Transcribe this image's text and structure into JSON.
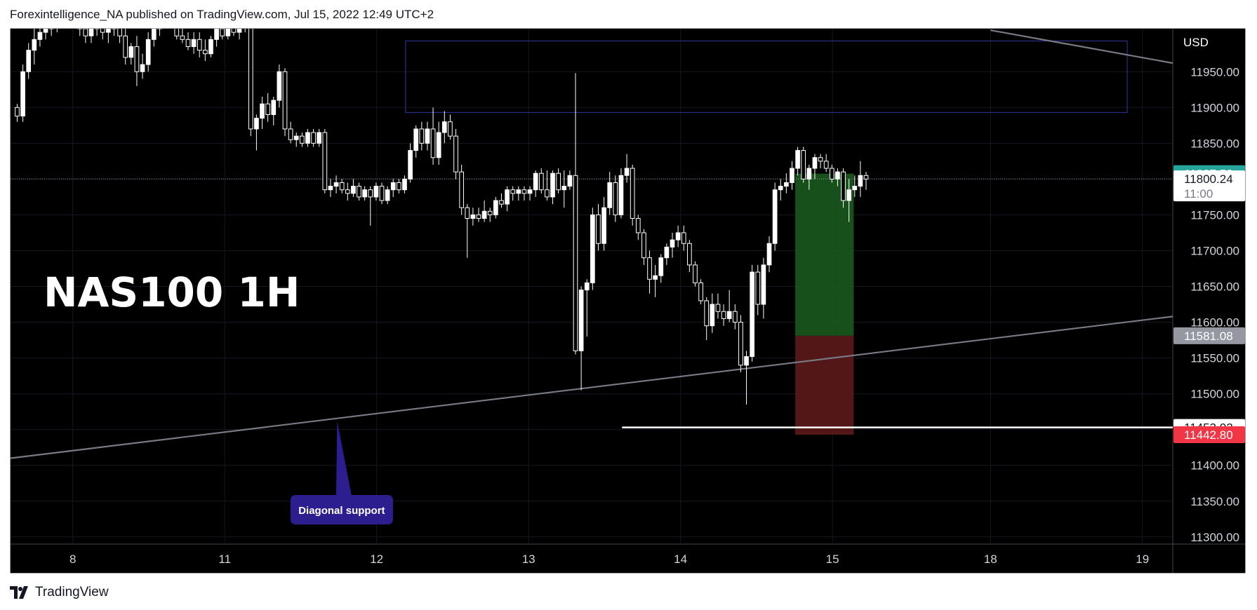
{
  "header": {
    "text": "Forexintelligence_NA published on TradingView.com, Jul 15, 2022 12:49 UTC+2"
  },
  "footer": {
    "brand": "TradingView",
    "logo_icon": "tradingview-logo-icon"
  },
  "chart_data": {
    "type": "candlestick",
    "title": "NAS100 1H",
    "currency": "USD",
    "y_ticks": [
      11300,
      11350,
      11400,
      11450,
      11500,
      11550,
      11600,
      11650,
      11700,
      11750,
      11800,
      11850,
      11900,
      11950
    ],
    "y_tick_labels": [
      "11300.00",
      "11350.00",
      "11400.00",
      "11450.00",
      "11500.00",
      "11550.00",
      "11600.00",
      "11650.00",
      "11700.00",
      "11750.00",
      "11800.00",
      "11850.00",
      "11900.00",
      "11950.00"
    ],
    "ylim": [
      11290,
      12010
    ],
    "x_tick_labels": [
      {
        "label": "8",
        "day": 0.82
      },
      {
        "label": "11",
        "day": 2.82
      },
      {
        "label": "12",
        "day": 4.82
      },
      {
        "label": "13",
        "day": 6.82
      },
      {
        "label": "14",
        "day": 8.82
      },
      {
        "label": "15",
        "day": 10.82
      },
      {
        "label": "18",
        "day": 12.9
      },
      {
        "label": "19",
        "day": 14.9
      }
    ],
    "xlim": [
      0,
      15.3
    ],
    "grid": true,
    "price_labels": [
      {
        "text": "11807.58",
        "value": 11807.58,
        "bg": "#26a69a",
        "fg": "#ffffff"
      },
      {
        "text": "11800.24",
        "value": 11800.24,
        "bg": "#ffffff",
        "fg": "#131722",
        "subtext": "11:00"
      },
      {
        "text": "11581.08",
        "value": 11581.08,
        "bg": "#9598a1",
        "fg": "#ffffff"
      },
      {
        "text": "11453.02",
        "value": 11453.02,
        "bg": "#ffffff",
        "fg": "#131722"
      },
      {
        "text": "11442.80",
        "value": 11442.8,
        "bg": "#f23645",
        "fg": "#ffffff"
      }
    ],
    "current_price": 11800.24,
    "resistance_zone": {
      "x0": 5.2,
      "x1": 14.7,
      "y_low": 11893,
      "y_high": 11993,
      "color": "#2a2e8c"
    },
    "horizontal_support": {
      "value": 11453.02,
      "x_start": 8.05
    },
    "diagonal_lines": [
      {
        "name": "diagonal-support-line",
        "x0": 0,
        "y0": 11410,
        "x1": 15.3,
        "y1": 11608
      },
      {
        "name": "upper-trend-line",
        "x0": 12.9,
        "y0": 12008,
        "x1": 15.3,
        "y1": 11962
      }
    ],
    "position": {
      "x0": 10.33,
      "x1": 11.1,
      "entry": 11581.08,
      "target": 11807.58,
      "stop": 11442.8,
      "profit_color": "#1b5e20",
      "loss_color": "#5c1a1a"
    },
    "annotation": {
      "text": "Diagonal support",
      "arrow_tip": {
        "x": 4.3,
        "y": 11462
      },
      "box_center": {
        "x": 4.36,
        "y": 11338
      },
      "bg": "#2d1e8f"
    },
    "candles": [
      [
        11900,
        11905,
        11880,
        11888
      ],
      [
        11888,
        11960,
        11880,
        11950
      ],
      [
        11950,
        11990,
        11940,
        11980
      ],
      [
        11980,
        12010,
        11960,
        11995
      ],
      [
        11995,
        12020,
        11985,
        12005
      ],
      [
        12005,
        12030,
        11995,
        12010
      ],
      [
        12010,
        12035,
        12000,
        12015
      ],
      [
        12015,
        12040,
        12005,
        12020
      ],
      [
        12020,
        12040,
        12010,
        12025
      ],
      [
        12025,
        12050,
        12015,
        12030
      ],
      [
        12030,
        12060,
        12020,
        12040
      ],
      [
        12040,
        12050,
        12000,
        12010
      ],
      [
        12010,
        12030,
        11990,
        12000
      ],
      [
        12000,
        12020,
        11990,
        12010
      ],
      [
        12010,
        12030,
        12000,
        12015
      ],
      [
        12015,
        12030,
        11995,
        12005
      ],
      [
        12005,
        12025,
        11990,
        12010
      ],
      [
        12010,
        12030,
        12000,
        12020
      ],
      [
        12020,
        12030,
        11990,
        12000
      ],
      [
        12000,
        12010,
        11960,
        11970
      ],
      [
        11970,
        11990,
        11960,
        11985
      ],
      [
        11985,
        12000,
        11930,
        11950
      ],
      [
        11950,
        11975,
        11940,
        11960
      ],
      [
        11960,
        12005,
        11950,
        11995
      ],
      [
        11995,
        12020,
        11985,
        12010
      ],
      [
        12010,
        12030,
        12000,
        12020
      ],
      [
        12020,
        12035,
        12010,
        12025
      ],
      [
        12025,
        12040,
        12010,
        12015
      ],
      [
        12015,
        12020,
        11995,
        12000
      ],
      [
        12000,
        12010,
        11990,
        11995
      ],
      [
        11995,
        12005,
        11980,
        11985
      ],
      [
        11985,
        12005,
        11975,
        11995
      ],
      [
        11995,
        12005,
        11970,
        11980
      ],
      [
        11980,
        11995,
        11965,
        11975
      ],
      [
        11975,
        12000,
        11970,
        11995
      ],
      [
        11995,
        12020,
        11985,
        12010
      ],
      [
        12010,
        12025,
        11995,
        12000
      ],
      [
        12000,
        12030,
        11995,
        12020
      ],
      [
        12020,
        12030,
        12000,
        12005
      ],
      [
        12005,
        12025,
        11995,
        12015
      ],
      [
        12015,
        12040,
        12005,
        12030
      ],
      [
        12030,
        12040,
        11860,
        11870
      ],
      [
        11870,
        11890,
        11840,
        11885
      ],
      [
        11885,
        11915,
        11870,
        11905
      ],
      [
        11905,
        11920,
        11880,
        11890
      ],
      [
        11890,
        11915,
        11875,
        11910
      ],
      [
        11910,
        11960,
        11900,
        11950
      ],
      [
        11950,
        11955,
        11860,
        11870
      ],
      [
        11870,
        11880,
        11850,
        11855
      ],
      [
        11855,
        11865,
        11845,
        11860
      ],
      [
        11860,
        11865,
        11845,
        11850
      ],
      [
        11850,
        11870,
        11845,
        11865
      ],
      [
        11865,
        11870,
        11845,
        11850
      ],
      [
        11850,
        11870,
        11845,
        11865
      ],
      [
        11865,
        11870,
        11780,
        11785
      ],
      [
        11785,
        11800,
        11775,
        11790
      ],
      [
        11790,
        11805,
        11780,
        11795
      ],
      [
        11795,
        11800,
        11780,
        11785
      ],
      [
        11785,
        11795,
        11770,
        11780
      ],
      [
        11780,
        11800,
        11775,
        11790
      ],
      [
        11790,
        11795,
        11770,
        11775
      ],
      [
        11775,
        11790,
        11770,
        11785
      ],
      [
        11785,
        11790,
        11735,
        11775
      ],
      [
        11775,
        11795,
        11770,
        11790
      ],
      [
        11790,
        11795,
        11765,
        11770
      ],
      [
        11770,
        11790,
        11765,
        11785
      ],
      [
        11785,
        11800,
        11775,
        11795
      ],
      [
        11795,
        11800,
        11780,
        11785
      ],
      [
        11785,
        11805,
        11780,
        11800
      ],
      [
        11800,
        11850,
        11795,
        11840
      ],
      [
        11840,
        11875,
        11830,
        11870
      ],
      [
        11870,
        11880,
        11840,
        11850
      ],
      [
        11850,
        11880,
        11840,
        11870
      ],
      [
        11870,
        11900,
        11820,
        11830
      ],
      [
        11830,
        11880,
        11820,
        11865
      ],
      [
        11865,
        11895,
        11850,
        11880
      ],
      [
        11880,
        11890,
        11855,
        11860
      ],
      [
        11860,
        11870,
        11800,
        11810
      ],
      [
        11810,
        11820,
        11750,
        11760
      ],
      [
        11760,
        11765,
        11690,
        11745
      ],
      [
        11745,
        11760,
        11735,
        11750
      ],
      [
        11750,
        11760,
        11740,
        11745
      ],
      [
        11745,
        11770,
        11740,
        11755
      ],
      [
        11755,
        11760,
        11740,
        11750
      ],
      [
        11750,
        11775,
        11745,
        11770
      ],
      [
        11770,
        11780,
        11760,
        11765
      ],
      [
        11765,
        11790,
        11755,
        11785
      ],
      [
        11785,
        11790,
        11770,
        11780
      ],
      [
        11780,
        11790,
        11770,
        11785
      ],
      [
        11785,
        11790,
        11770,
        11780
      ],
      [
        11780,
        11790,
        11770,
        11785
      ],
      [
        11785,
        11812,
        11775,
        11808
      ],
      [
        11808,
        11815,
        11780,
        11785
      ],
      [
        11785,
        11812,
        11770,
        11775
      ],
      [
        11775,
        11812,
        11765,
        11808
      ],
      [
        11808,
        11815,
        11780,
        11785
      ],
      [
        11785,
        11812,
        11760,
        11790
      ],
      [
        11790,
        11812,
        11785,
        11805
      ],
      [
        11805,
        11948,
        11555,
        11560
      ],
      [
        11560,
        11650,
        11505,
        11645
      ],
      [
        11645,
        11660,
        11580,
        11655
      ],
      [
        11655,
        11760,
        11645,
        11750
      ],
      [
        11750,
        11765,
        11700,
        11710
      ],
      [
        11710,
        11775,
        11700,
        11760
      ],
      [
        11760,
        11810,
        11750,
        11795
      ],
      [
        11795,
        11805,
        11740,
        11750
      ],
      [
        11750,
        11815,
        11745,
        11805
      ],
      [
        11805,
        11835,
        11795,
        11815
      ],
      [
        11815,
        11820,
        11735,
        11745
      ],
      [
        11745,
        11750,
        11715,
        11725
      ],
      [
        11725,
        11730,
        11680,
        11690
      ],
      [
        11690,
        11700,
        11640,
        11660
      ],
      [
        11660,
        11680,
        11635,
        11665
      ],
      [
        11665,
        11695,
        11655,
        11690
      ],
      [
        11690,
        11710,
        11680,
        11705
      ],
      [
        11705,
        11725,
        11690,
        11715
      ],
      [
        11715,
        11735,
        11705,
        11725
      ],
      [
        11725,
        11735,
        11700,
        11710
      ],
      [
        11710,
        11715,
        11670,
        11680
      ],
      [
        11680,
        11685,
        11650,
        11655
      ],
      [
        11655,
        11660,
        11625,
        11630
      ],
      [
        11630,
        11635,
        11575,
        11595
      ],
      [
        11595,
        11640,
        11585,
        11625
      ],
      [
        11625,
        11640,
        11605,
        11615
      ],
      [
        11615,
        11625,
        11595,
        11605
      ],
      [
        11605,
        11645,
        11600,
        11615
      ],
      [
        11615,
        11625,
        11590,
        11600
      ],
      [
        11600,
        11610,
        11530,
        11540
      ],
      [
        11540,
        11560,
        11485,
        11552
      ],
      [
        11552,
        11680,
        11545,
        11670
      ],
      [
        11670,
        11680,
        11610,
        11625
      ],
      [
        11625,
        11690,
        11605,
        11680
      ],
      [
        11680,
        11720,
        11670,
        11710
      ],
      [
        11710,
        11795,
        11700,
        11785
      ],
      [
        11785,
        11800,
        11770,
        11790
      ],
      [
        11790,
        11808,
        11780,
        11795
      ],
      [
        11795,
        11825,
        11785,
        11815
      ],
      [
        11815,
        11845,
        11805,
        11840
      ],
      [
        11840,
        11845,
        11795,
        11800
      ],
      [
        11800,
        11820,
        11785,
        11815
      ],
      [
        11815,
        11835,
        11800,
        11830
      ],
      [
        11830,
        11835,
        11815,
        11825
      ],
      [
        11825,
        11835,
        11810,
        11815
      ],
      [
        11815,
        11820,
        11795,
        11800
      ],
      [
        11800,
        11815,
        11790,
        11810
      ],
      [
        11810,
        11815,
        11760,
        11770
      ],
      [
        11770,
        11800,
        11740,
        11785
      ],
      [
        11785,
        11805,
        11775,
        11790
      ],
      [
        11790,
        11825,
        11775,
        11805
      ],
      [
        11805,
        11810,
        11785,
        11800
      ]
    ]
  }
}
